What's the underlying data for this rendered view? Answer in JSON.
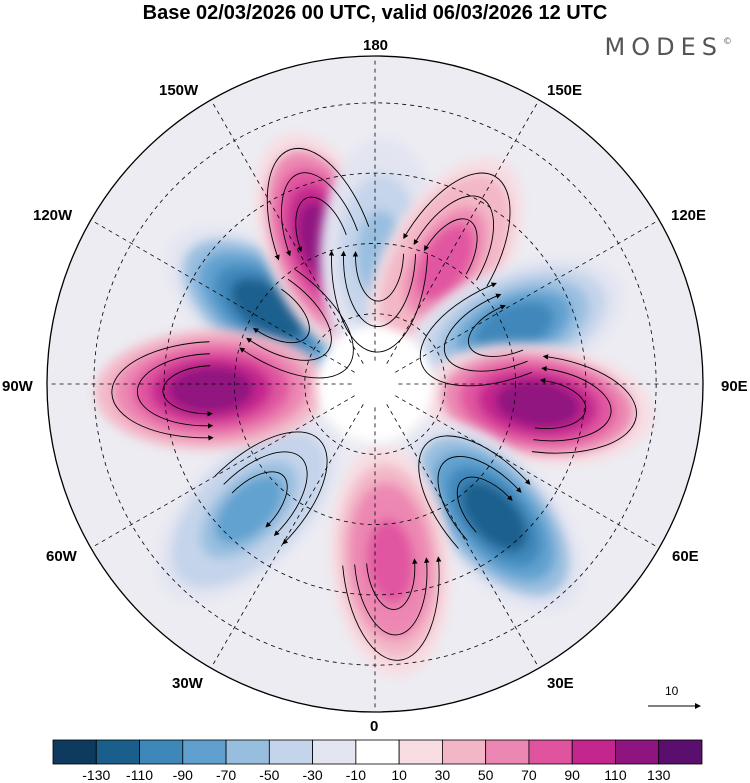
{
  "title": "Base 02/03/2026 00 UTC, valid 06/03/2026 12 UTC",
  "brand": "MODES",
  "brand_mark": "©",
  "longitude_labels": {
    "top": "180",
    "bottom": "0",
    "left": "90W",
    "right": "90E",
    "upper_left_1": "150W",
    "upper_left_2": "120W",
    "lower_left_1": "60W",
    "lower_left_2": "30W",
    "upper_right_1": "150E",
    "upper_right_2": "120E",
    "lower_right_1": "60E",
    "lower_right_2": "30E"
  },
  "vector_reference": {
    "value": "10"
  },
  "colorbar": {
    "colors": [
      "#0d3a5e",
      "#1a5f8c",
      "#3d87b9",
      "#5fa0cf",
      "#97bedf",
      "#c4d4ea",
      "#e3e5f1",
      "#ffffff",
      "#f8dde3",
      "#f3b6c6",
      "#ec86b2",
      "#e0549f",
      "#c3268d",
      "#8e157f",
      "#5a0f6e"
    ],
    "labels": [
      "-130",
      "-110",
      "-90",
      "-70",
      "-50",
      "-30",
      "-10",
      "10",
      "30",
      "50",
      "70",
      "90",
      "110",
      "130"
    ]
  },
  "anomaly_cells": [
    {
      "name": "low-120w",
      "lon": -125,
      "lat": 62,
      "value": -120
    },
    {
      "name": "high-150w",
      "lon": -160,
      "lat": 58,
      "value": 115
    },
    {
      "name": "low-180",
      "lon": 178,
      "lat": 62,
      "value": -60
    },
    {
      "name": "high-150e",
      "lon": 150,
      "lat": 60,
      "value": 75
    },
    {
      "name": "low-120e",
      "lon": 112,
      "lat": 58,
      "value": -95
    },
    {
      "name": "high-90e",
      "lon": 83,
      "lat": 55,
      "value": 115
    },
    {
      "name": "low-60e",
      "lon": 42,
      "lat": 52,
      "value": -115
    },
    {
      "name": "high-30e",
      "lon": 5,
      "lat": 52,
      "value": 85
    },
    {
      "name": "low-60w",
      "lon": -45,
      "lat": 52,
      "value": -80
    },
    {
      "name": "high-90w",
      "lon": -88,
      "lat": 55,
      "value": 125
    }
  ]
}
